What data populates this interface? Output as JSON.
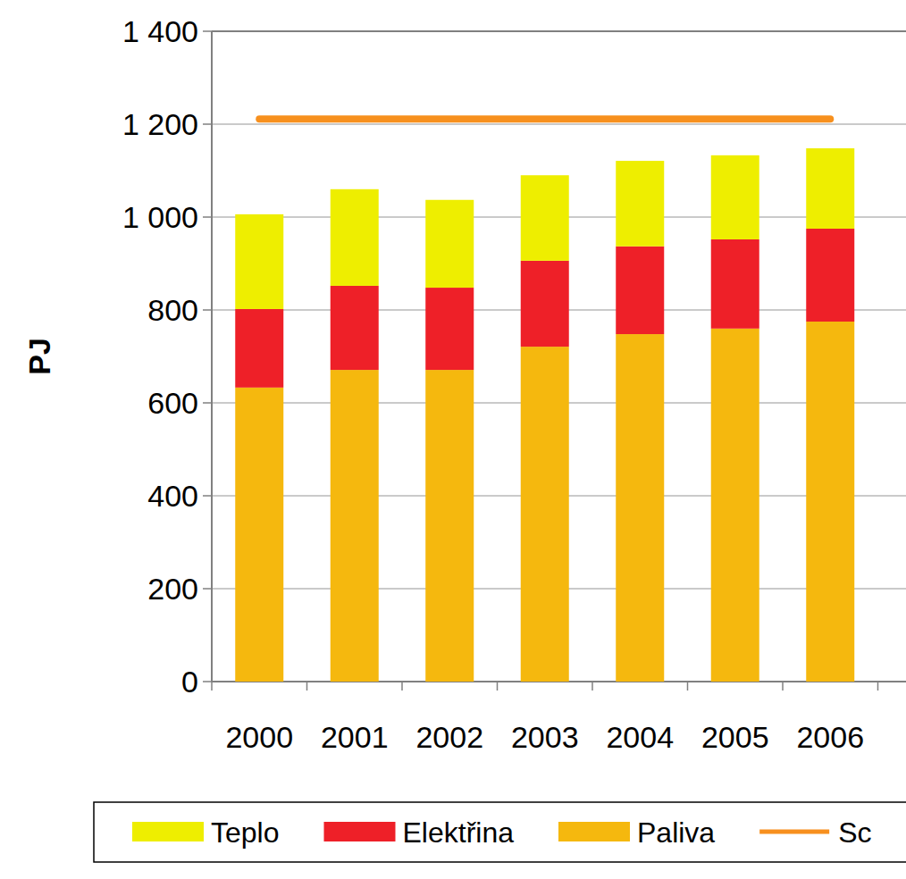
{
  "chart_data": {
    "type": "bar",
    "stacked": true,
    "grid": true,
    "legend": "bottom",
    "y_label": "PJ",
    "categories": [
      "2000",
      "2001",
      "2002",
      "2003",
      "2004",
      "2005",
      "2006"
    ],
    "series": [
      {
        "name": "Teplo",
        "color": "#eeee00",
        "values": [
          204,
          208,
          189,
          184,
          184,
          181,
          173
        ]
      },
      {
        "name": "Elektřina",
        "color": "#ee2028",
        "values": [
          169,
          181,
          177,
          185,
          189,
          192,
          200
        ]
      },
      {
        "name": "Paliva",
        "color": "#f5b80e",
        "values": [
          633,
          671,
          671,
          721,
          748,
          760,
          775
        ]
      },
      {
        "name": "Sc",
        "type": "line",
        "color": "#f7901e",
        "values": [
          1211,
          1211,
          1211,
          1211,
          1211,
          1211,
          1211
        ]
      }
    ],
    "ylim": [
      0,
      1400
    ],
    "yticks": [
      0,
      200,
      400,
      600,
      800,
      {
        "value": 1000,
        "label": "1 000"
      },
      {
        "value": 1200,
        "label": "1 200"
      },
      {
        "value": 1400,
        "label": "1 400"
      }
    ]
  }
}
